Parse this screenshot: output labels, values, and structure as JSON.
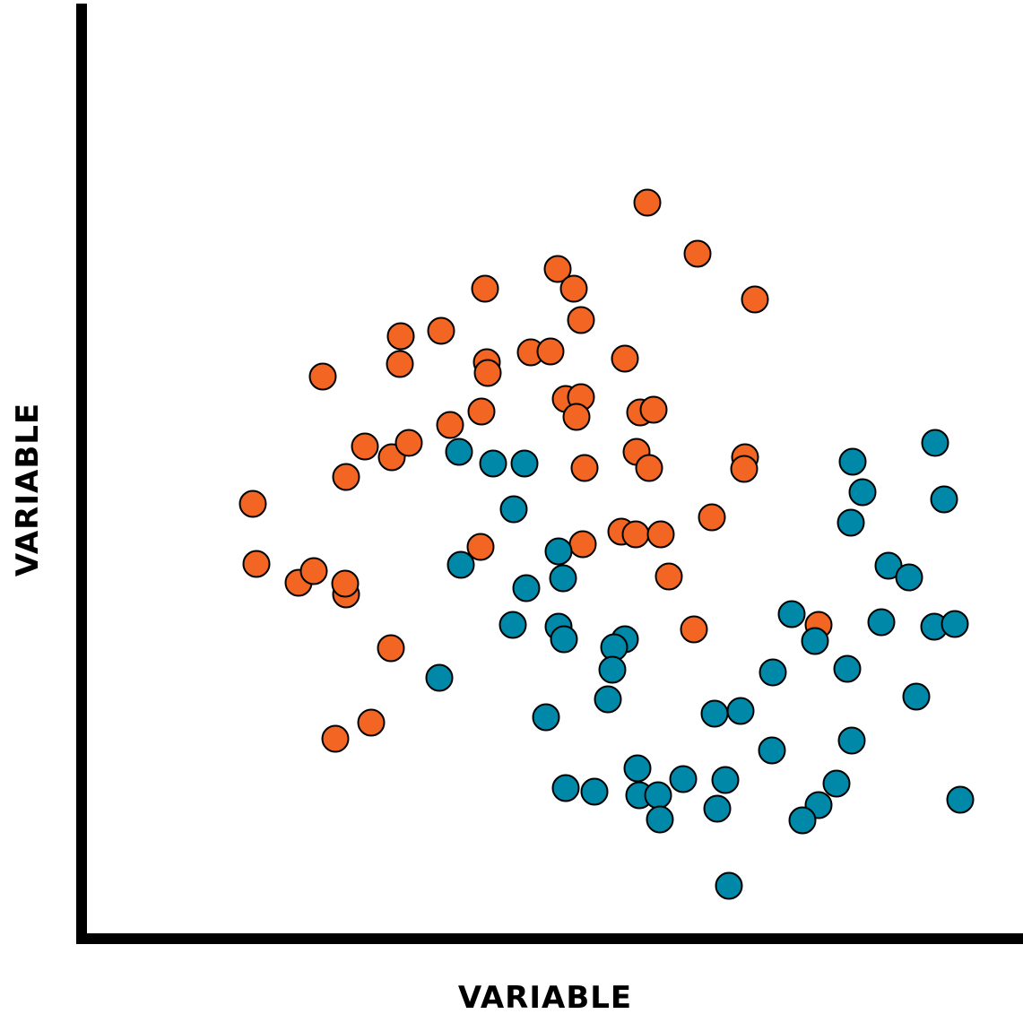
{
  "chart_data": {
    "type": "scatter",
    "title": "",
    "xlabel": "VARIABLE",
    "ylabel": "VARIABLE",
    "xlim": [
      0,
      100
    ],
    "ylim": [
      0,
      100
    ],
    "grid": false,
    "legend": "none",
    "series": [
      {
        "color": "#f26522",
        "points": [
          [
            61.2,
            81.4
          ],
          [
            66.8,
            75.7
          ],
          [
            73.2,
            70.6
          ],
          [
            51.2,
            74.0
          ],
          [
            53.0,
            71.8
          ],
          [
            43.1,
            71.8
          ],
          [
            53.8,
            68.3
          ],
          [
            38.2,
            67.1
          ],
          [
            33.7,
            66.5
          ],
          [
            33.6,
            63.4
          ],
          [
            43.3,
            63.6
          ],
          [
            43.4,
            62.4
          ],
          [
            48.2,
            64.7
          ],
          [
            50.4,
            64.8
          ],
          [
            58.7,
            64.0
          ],
          [
            25.0,
            62.0
          ],
          [
            52.1,
            59.5
          ],
          [
            53.8,
            59.7
          ],
          [
            53.3,
            57.5
          ],
          [
            60.4,
            58.0
          ],
          [
            61.9,
            58.3
          ],
          [
            42.7,
            58.1
          ],
          [
            39.2,
            56.6
          ],
          [
            29.7,
            54.2
          ],
          [
            32.7,
            53.0
          ],
          [
            34.6,
            54.6
          ],
          [
            27.6,
            50.8
          ],
          [
            60.0,
            53.6
          ],
          [
            61.4,
            51.8
          ],
          [
            54.2,
            51.8
          ],
          [
            72.1,
            53.0
          ],
          [
            72.0,
            51.7
          ],
          [
            17.2,
            47.8
          ],
          [
            68.4,
            46.3
          ],
          [
            58.3,
            44.7
          ],
          [
            59.9,
            44.4
          ],
          [
            62.7,
            44.4
          ],
          [
            54.0,
            43.3
          ],
          [
            42.6,
            43.0
          ],
          [
            17.6,
            41.1
          ],
          [
            22.3,
            39.0
          ],
          [
            24.0,
            40.3
          ],
          [
            27.6,
            37.7
          ],
          [
            27.5,
            38.9
          ],
          [
            63.6,
            39.7
          ],
          [
            80.3,
            34.3
          ],
          [
            66.4,
            33.8
          ],
          [
            32.6,
            31.7
          ],
          [
            30.4,
            23.4
          ],
          [
            26.4,
            21.6
          ]
        ]
      },
      {
        "color": "#0088a8",
        "points": [
          [
            93.3,
            54.6
          ],
          [
            40.2,
            53.6
          ],
          [
            44.0,
            52.3
          ],
          [
            47.5,
            52.3
          ],
          [
            84.1,
            52.5
          ],
          [
            94.3,
            48.3
          ],
          [
            85.2,
            49.1
          ],
          [
            46.3,
            47.2
          ],
          [
            83.9,
            45.7
          ],
          [
            51.3,
            42.5
          ],
          [
            40.4,
            41.0
          ],
          [
            88.1,
            40.9
          ],
          [
            90.4,
            39.6
          ],
          [
            51.8,
            39.5
          ],
          [
            47.7,
            38.4
          ],
          [
            77.3,
            35.5
          ],
          [
            87.3,
            34.6
          ],
          [
            93.2,
            34.1
          ],
          [
            95.5,
            34.4
          ],
          [
            46.2,
            34.3
          ],
          [
            51.3,
            34.1
          ],
          [
            51.9,
            32.7
          ],
          [
            58.7,
            32.7
          ],
          [
            57.5,
            31.8
          ],
          [
            79.9,
            32.5
          ],
          [
            75.2,
            29.0
          ],
          [
            83.5,
            29.4
          ],
          [
            57.3,
            29.3
          ],
          [
            38.0,
            28.4
          ],
          [
            91.2,
            26.3
          ],
          [
            56.8,
            26.0
          ],
          [
            49.9,
            24.0
          ],
          [
            68.7,
            24.4
          ],
          [
            71.6,
            24.7
          ],
          [
            84.0,
            21.4
          ],
          [
            75.1,
            20.3
          ],
          [
            60.1,
            18.3
          ],
          [
            65.2,
            17.1
          ],
          [
            69.9,
            17.0
          ],
          [
            82.3,
            16.6
          ],
          [
            52.1,
            16.1
          ],
          [
            55.3,
            15.7
          ],
          [
            60.3,
            15.3
          ],
          [
            62.4,
            15.3
          ],
          [
            96.1,
            14.8
          ],
          [
            80.3,
            14.2
          ],
          [
            69.0,
            13.8
          ],
          [
            62.6,
            12.6
          ],
          [
            78.5,
            12.5
          ],
          [
            70.3,
            5.2
          ]
        ]
      }
    ]
  }
}
